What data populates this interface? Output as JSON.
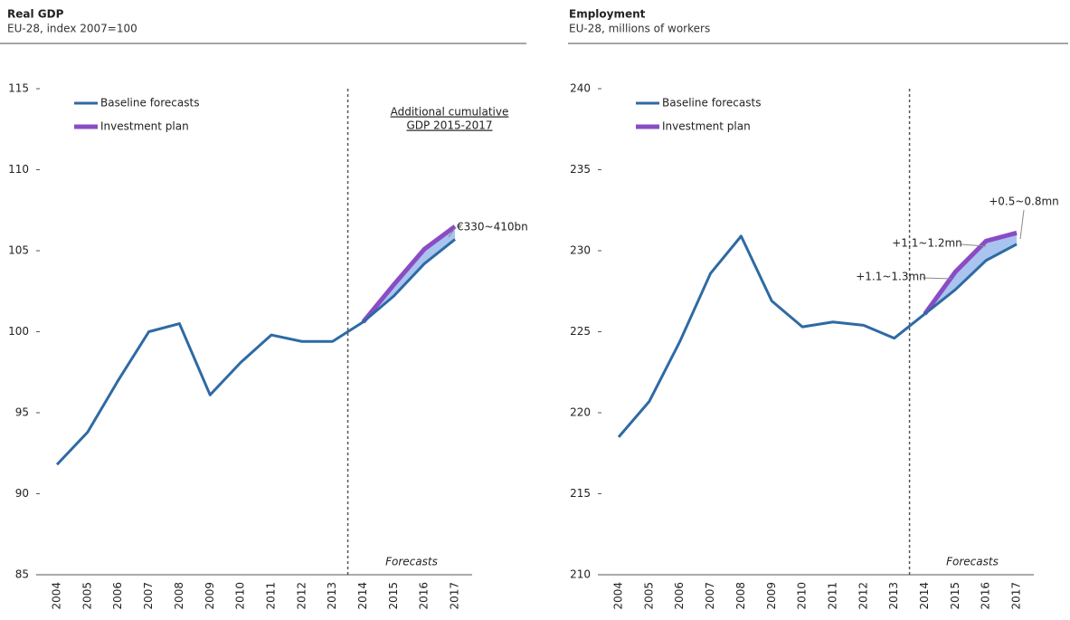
{
  "chart_data": [
    {
      "type": "line",
      "title": "Real GDP",
      "subtitle": "EU-28, index 2007=100",
      "categories": [
        "2004",
        "2005",
        "2006",
        "2007",
        "2008",
        "2009",
        "2010",
        "2011",
        "2012",
        "2013",
        "2014",
        "2015",
        "2016",
        "2017"
      ],
      "series": [
        {
          "name": "Baseline forecasts",
          "color": "#2e6aa4",
          "values": [
            91.8,
            93.8,
            97.0,
            100.0,
            100.5,
            96.1,
            98.1,
            99.8,
            99.4,
            99.4,
            100.6,
            102.2,
            104.2,
            105.7
          ]
        },
        {
          "name": "Investment plan",
          "color": "#8a4cc4",
          "values": [
            null,
            null,
            null,
            null,
            null,
            null,
            null,
            null,
            null,
            null,
            100.6,
            102.9,
            105.1,
            106.5
          ]
        }
      ],
      "ylim": [
        85,
        115
      ],
      "yticks": [
        85,
        90,
        95,
        100,
        105,
        110,
        115
      ],
      "legend": "upper left",
      "annotations": [
        "Additional cumulative",
        "GDP 2015-2017",
        "€330~410bn",
        "Forecasts"
      ]
    },
    {
      "type": "line",
      "title": "Employment",
      "subtitle": "EU-28, millions of workers",
      "categories": [
        "2004",
        "2005",
        "2006",
        "2007",
        "2008",
        "2009",
        "2010",
        "2011",
        "2012",
        "2013",
        "2014",
        "2015",
        "2016",
        "2017"
      ],
      "series": [
        {
          "name": "Baseline forecasts",
          "color": "#2e6aa4",
          "values": [
            218.5,
            220.7,
            224.4,
            228.6,
            230.9,
            226.9,
            225.3,
            225.6,
            225.4,
            224.6,
            226.1,
            227.6,
            229.4,
            230.4
          ]
        },
        {
          "name": "Investment plan",
          "color": "#8a4cc4",
          "values": [
            null,
            null,
            null,
            null,
            null,
            null,
            null,
            null,
            null,
            null,
            226.1,
            228.7,
            230.6,
            231.1
          ]
        }
      ],
      "ylim": [
        210,
        240
      ],
      "yticks": [
        210,
        215,
        220,
        225,
        230,
        235,
        240
      ],
      "legend": "upper left",
      "annotations": [
        "+0.5~0.8mn",
        "+1.1~1.2mn",
        "+1.1~1.3mn",
        "Forecasts"
      ]
    }
  ]
}
